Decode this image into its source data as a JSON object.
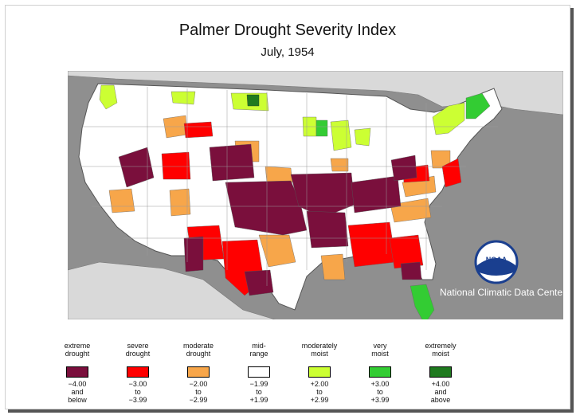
{
  "title": "Palmer Drought Severity Index",
  "subtitle": "July, 1954",
  "center_name": "National Climatic Data Center",
  "logo_text": "NOAA",
  "colors": {
    "ocean": "#8f8f8f",
    "land_other": "#d9d9d9",
    "extreme": "#7a0f3c",
    "severe": "#ff0000",
    "moderate": "#f7a64a",
    "mid": "#ffffff",
    "mod_moist": "#ccff33",
    "very_moist": "#33cc33",
    "ext_moist": "#1f7a1f"
  },
  "legend": [
    {
      "cat1": "extreme",
      "cat2": "drought",
      "r1": "−4.00",
      "r2": "and",
      "r3": "below",
      "color": "#7a0f3c"
    },
    {
      "cat1": "severe",
      "cat2": "drought",
      "r1": "−3.00",
      "r2": "to",
      "r3": "−3.99",
      "color": "#ff0000"
    },
    {
      "cat1": "moderate",
      "cat2": "drought",
      "r1": "−2.00",
      "r2": "to",
      "r3": "−2.99",
      "color": "#f7a64a"
    },
    {
      "cat1": "mid-",
      "cat2": "range",
      "r1": "−1.99",
      "r2": "to",
      "r3": "+1.99",
      "color": "#ffffff"
    },
    {
      "cat1": "moderately",
      "cat2": "moist",
      "r1": "+2.00",
      "r2": "to",
      "r3": "+2.99",
      "color": "#ccff33"
    },
    {
      "cat1": "very",
      "cat2": "moist",
      "r1": "+3.00",
      "r2": "to",
      "r3": "+3.99",
      "color": "#33cc33"
    },
    {
      "cat1": "extremely",
      "cat2": "moist",
      "r1": "+4.00",
      "r2": "and",
      "r3": "above",
      "color": "#1f7a1f"
    }
  ]
}
